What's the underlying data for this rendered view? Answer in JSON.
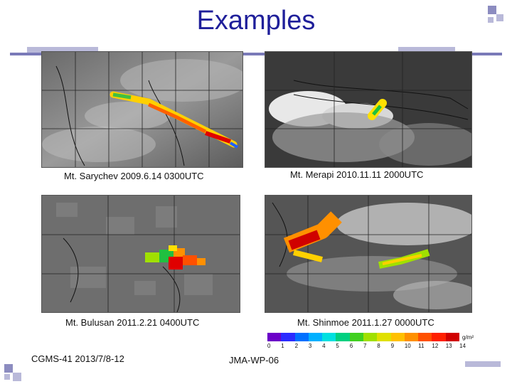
{
  "title": "Examples",
  "captions": {
    "sarychev": "Mt. Sarychev 2009.6.14 0300UTC",
    "merapi": "Mt. Merapi 2010.11.11 2000UTC",
    "bulusan": "Mt. Bulusan 2011.2.21 0400UTC",
    "shinmoe": "Mt. Shinmoe 2011.1.27 0000UTC"
  },
  "colorbar": {
    "unit": "g/m²",
    "ticks": [
      "0",
      "1",
      "2",
      "3",
      "4",
      "5",
      "6",
      "7",
      "8",
      "9",
      "10",
      "11",
      "12",
      "13",
      "14"
    ],
    "colors": [
      "#6b00c8",
      "#2b2bff",
      "#0070ff",
      "#00b0ff",
      "#00e0e0",
      "#00d080",
      "#40d020",
      "#a0e000",
      "#e0e000",
      "#ffc000",
      "#ff9000",
      "#ff5000",
      "#ff2000",
      "#d00000"
    ]
  },
  "footer": {
    "left": "CGMS-41 2013/7/8-12",
    "center": "JMA-WP-06"
  }
}
